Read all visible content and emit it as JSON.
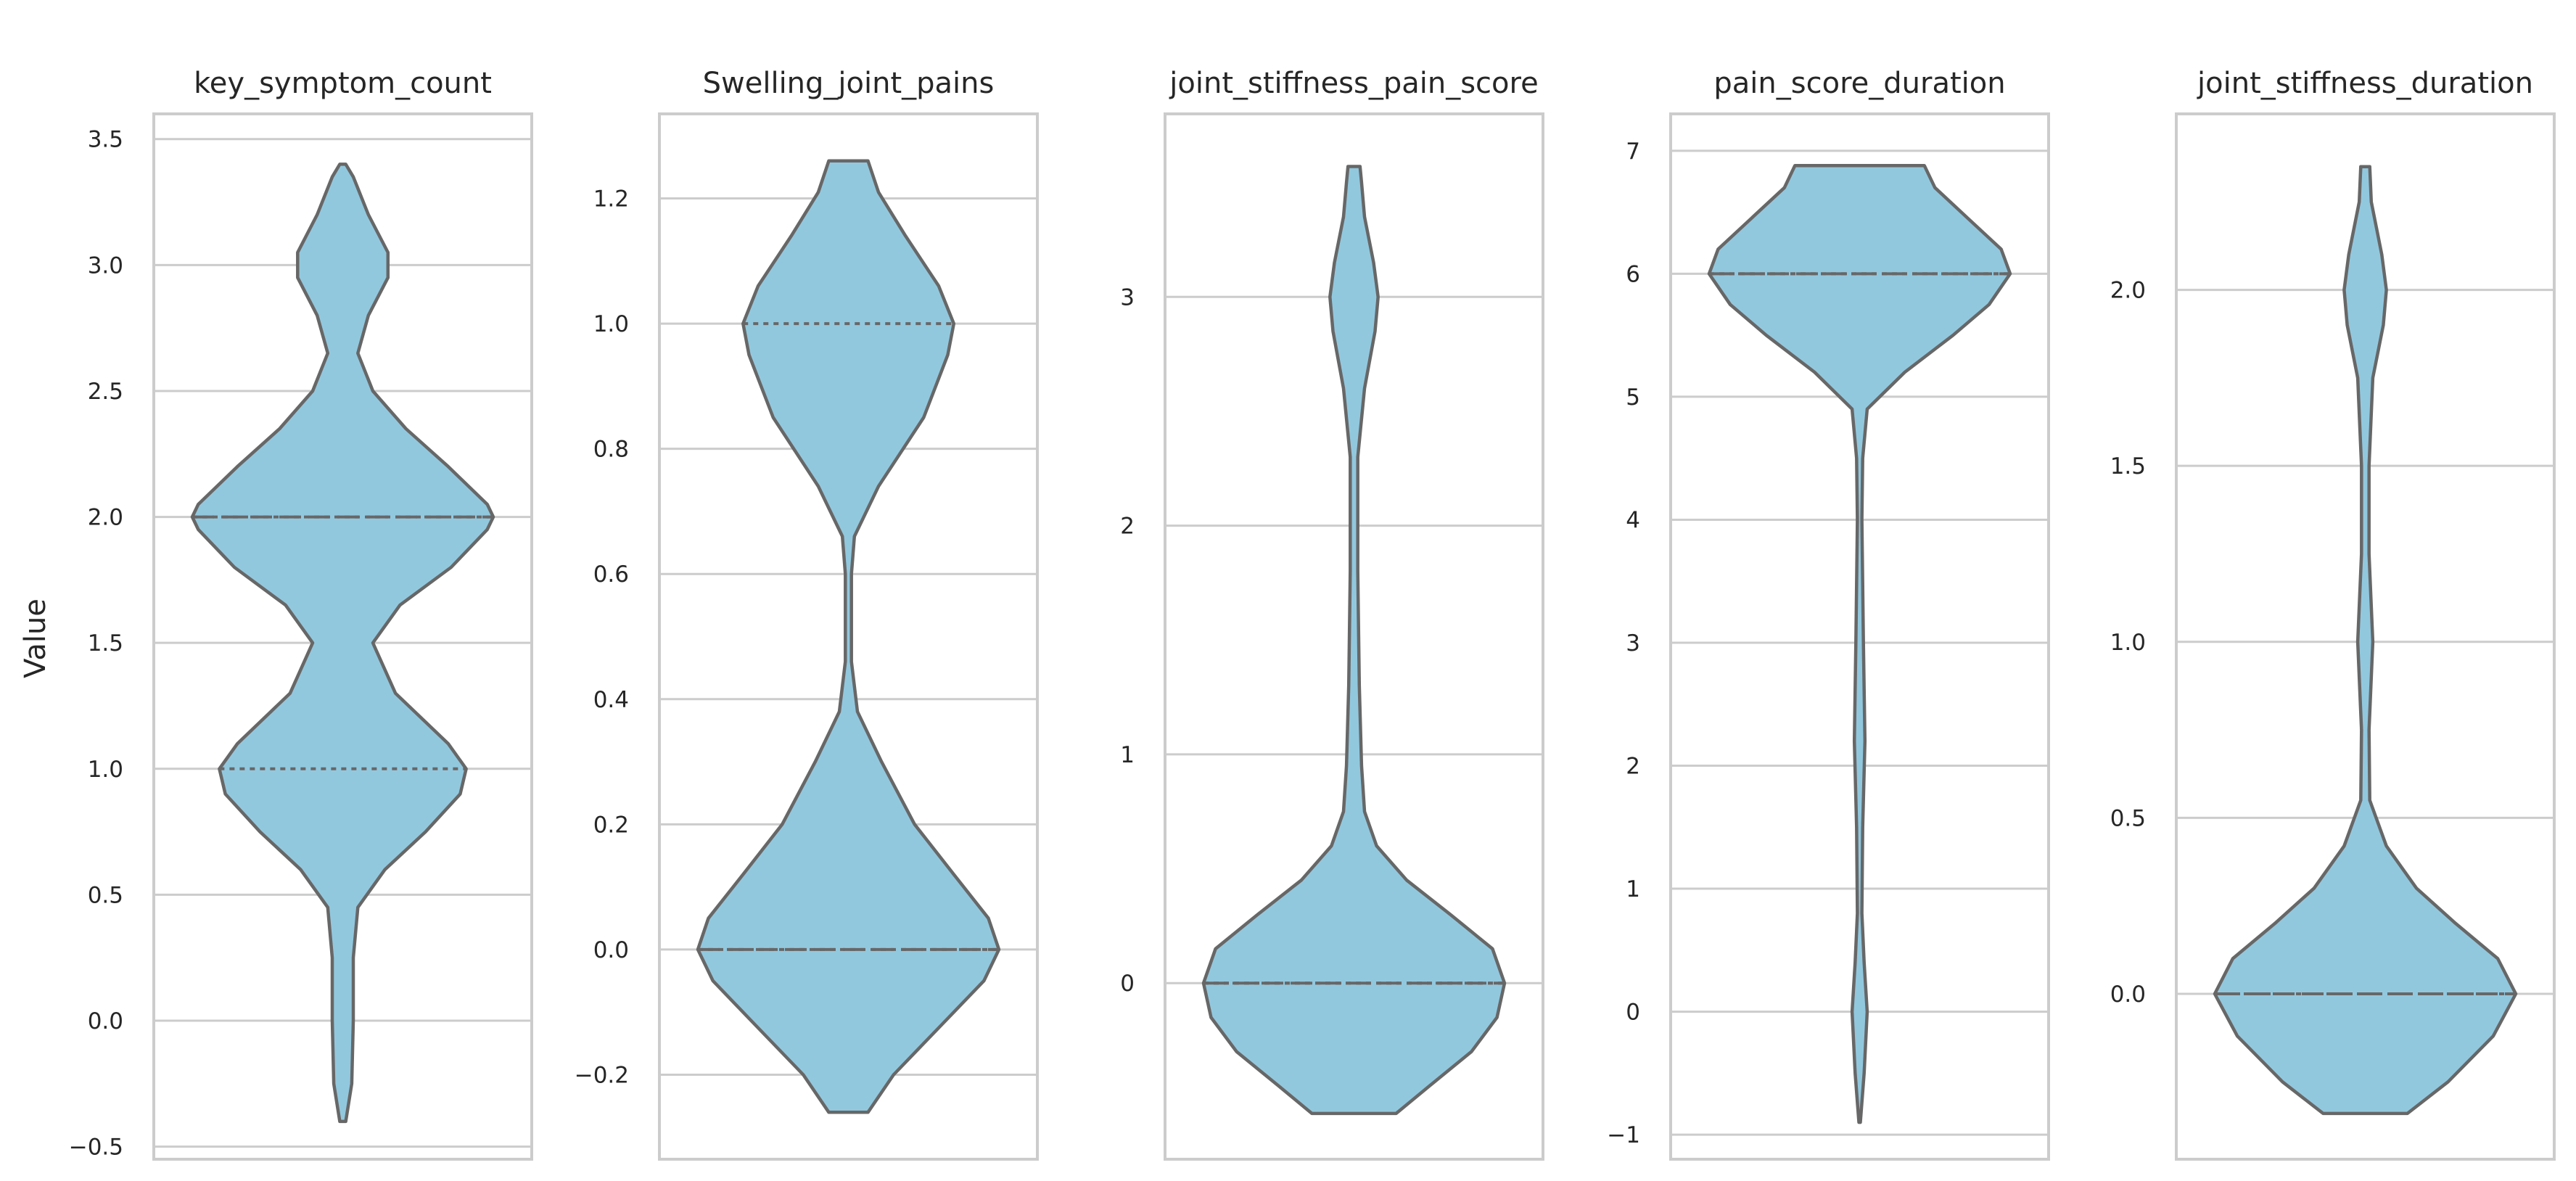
{
  "chart_data": {
    "type": "violin",
    "ylabel": "Value",
    "colors": {
      "fill": "#92c8de",
      "edge": "#676767",
      "grid": "#cccccc",
      "frame": "#cccccc"
    },
    "grid": true,
    "panels": [
      {
        "title": "key_symptom_count",
        "ylim": [
          -0.55,
          3.6
        ],
        "yticks": [
          -0.5,
          0.0,
          0.5,
          1.0,
          1.5,
          2.0,
          2.5,
          3.0,
          3.5
        ],
        "ytick_labels": [
          "−0.5",
          "0.0",
          "0.5",
          "1.0",
          "1.5",
          "2.0",
          "2.5",
          "3.0",
          "3.5"
        ],
        "range": [
          -0.4,
          3.4
        ],
        "quartiles": {
          "q1": 1.0,
          "median": 2.0,
          "q3": 2.0
        },
        "density_profile": [
          [
            -0.4,
            0.02
          ],
          [
            -0.25,
            0.06
          ],
          [
            0.0,
            0.07
          ],
          [
            0.25,
            0.07
          ],
          [
            0.45,
            0.1
          ],
          [
            0.6,
            0.28
          ],
          [
            0.75,
            0.55
          ],
          [
            0.9,
            0.78
          ],
          [
            1.0,
            0.82
          ],
          [
            1.1,
            0.7
          ],
          [
            1.3,
            0.35
          ],
          [
            1.5,
            0.2
          ],
          [
            1.65,
            0.38
          ],
          [
            1.8,
            0.72
          ],
          [
            1.95,
            0.96
          ],
          [
            2.0,
            1.0
          ],
          [
            2.05,
            0.96
          ],
          [
            2.2,
            0.7
          ],
          [
            2.35,
            0.42
          ],
          [
            2.5,
            0.2
          ],
          [
            2.65,
            0.1
          ],
          [
            2.8,
            0.17
          ],
          [
            2.95,
            0.3
          ],
          [
            3.05,
            0.3
          ],
          [
            3.2,
            0.17
          ],
          [
            3.35,
            0.07
          ],
          [
            3.4,
            0.02
          ]
        ]
      },
      {
        "title": "Swelling_joint_pains",
        "ylim": [
          -0.335,
          1.335
        ],
        "yticks": [
          -0.2,
          0.0,
          0.2,
          0.4,
          0.6,
          0.8,
          1.0,
          1.2
        ],
        "ytick_labels": [
          "−0.2",
          "0.0",
          "0.2",
          "0.4",
          "0.6",
          "0.8",
          "1.0",
          "1.2"
        ],
        "range": [
          -0.26,
          1.26
        ],
        "quartiles": {
          "q1": 0.0,
          "median": 0.0,
          "q3": 1.0
        },
        "density_profile": [
          [
            -0.26,
            0.13
          ],
          [
            -0.2,
            0.3
          ],
          [
            -0.12,
            0.62
          ],
          [
            -0.05,
            0.9
          ],
          [
            0.0,
            1.0
          ],
          [
            0.05,
            0.93
          ],
          [
            0.12,
            0.7
          ],
          [
            0.2,
            0.44
          ],
          [
            0.3,
            0.22
          ],
          [
            0.38,
            0.06
          ],
          [
            0.46,
            0.02
          ],
          [
            0.6,
            0.02
          ],
          [
            0.66,
            0.04
          ],
          [
            0.74,
            0.2
          ],
          [
            0.85,
            0.5
          ],
          [
            0.95,
            0.66
          ],
          [
            1.0,
            0.7
          ],
          [
            1.06,
            0.6
          ],
          [
            1.14,
            0.38
          ],
          [
            1.21,
            0.2
          ],
          [
            1.26,
            0.13
          ]
        ]
      },
      {
        "title": "joint_stiffness_pain_score",
        "ylim": [
          -0.77,
          3.8
        ],
        "yticks": [
          0,
          1,
          2,
          3
        ],
        "ytick_labels": [
          "0",
          "1",
          "2",
          "3"
        ],
        "range": [
          -0.57,
          3.57
        ],
        "quartiles": {
          "q1": 0.0,
          "median": 0.0,
          "q3": 0.0
        },
        "density_profile": [
          [
            -0.57,
            0.28
          ],
          [
            -0.45,
            0.5
          ],
          [
            -0.3,
            0.78
          ],
          [
            -0.15,
            0.95
          ],
          [
            0.0,
            1.0
          ],
          [
            0.15,
            0.92
          ],
          [
            0.3,
            0.64
          ],
          [
            0.45,
            0.35
          ],
          [
            0.6,
            0.15
          ],
          [
            0.75,
            0.07
          ],
          [
            0.95,
            0.05
          ],
          [
            1.3,
            0.035
          ],
          [
            1.8,
            0.025
          ],
          [
            2.3,
            0.025
          ],
          [
            2.6,
            0.07
          ],
          [
            2.85,
            0.14
          ],
          [
            3.0,
            0.16
          ],
          [
            3.15,
            0.13
          ],
          [
            3.35,
            0.07
          ],
          [
            3.5,
            0.05
          ],
          [
            3.57,
            0.04
          ]
        ]
      },
      {
        "title": "pain_score_duration",
        "ylim": [
          -1.2,
          7.3
        ],
        "yticks": [
          -1,
          0,
          1,
          2,
          3,
          4,
          5,
          6,
          7
        ],
        "ytick_labels": [
          "−1",
          "0",
          "1",
          "2",
          "3",
          "4",
          "5",
          "6",
          "7"
        ],
        "range": [
          -0.9,
          6.88
        ],
        "quartiles": {
          "q1": 6.0,
          "median": 6.0,
          "q3": 6.0
        },
        "density_profile": [
          [
            -0.9,
            0.005
          ],
          [
            -0.5,
            0.03
          ],
          [
            0.0,
            0.05
          ],
          [
            0.4,
            0.03
          ],
          [
            0.8,
            0.015
          ],
          [
            1.5,
            0.02
          ],
          [
            2.2,
            0.035
          ],
          [
            3.0,
            0.025
          ],
          [
            4.0,
            0.015
          ],
          [
            4.5,
            0.02
          ],
          [
            4.9,
            0.05
          ],
          [
            5.2,
            0.3
          ],
          [
            5.5,
            0.62
          ],
          [
            5.75,
            0.86
          ],
          [
            6.0,
            1.0
          ],
          [
            6.2,
            0.94
          ],
          [
            6.45,
            0.72
          ],
          [
            6.7,
            0.5
          ],
          [
            6.88,
            0.43
          ]
        ]
      },
      {
        "title": "joint_stiffness_duration",
        "ylim": [
          -0.47,
          2.5
        ],
        "yticks": [
          0.0,
          0.5,
          1.0,
          1.5,
          2.0
        ],
        "ytick_labels": [
          "0.0",
          "0.5",
          "1.0",
          "1.5",
          "2.0"
        ],
        "range": [
          -0.34,
          2.35
        ],
        "quartiles": {
          "q1": 0.0,
          "median": 0.0,
          "q3": 0.0
        },
        "density_profile": [
          [
            -0.34,
            0.28
          ],
          [
            -0.25,
            0.55
          ],
          [
            -0.12,
            0.85
          ],
          [
            0.0,
            1.0
          ],
          [
            0.1,
            0.88
          ],
          [
            0.2,
            0.6
          ],
          [
            0.3,
            0.34
          ],
          [
            0.42,
            0.14
          ],
          [
            0.55,
            0.03
          ],
          [
            0.75,
            0.025
          ],
          [
            1.0,
            0.05
          ],
          [
            1.25,
            0.025
          ],
          [
            1.5,
            0.025
          ],
          [
            1.75,
            0.05
          ],
          [
            1.9,
            0.12
          ],
          [
            2.0,
            0.14
          ],
          [
            2.1,
            0.11
          ],
          [
            2.25,
            0.04
          ],
          [
            2.35,
            0.03
          ]
        ]
      }
    ]
  }
}
